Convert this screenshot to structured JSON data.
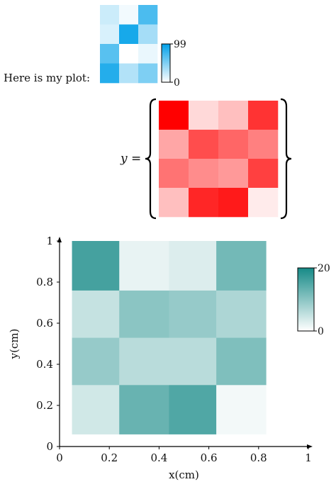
{
  "texts": {
    "intro": "Here is my plot:",
    "equation_lhs": "y ="
  },
  "chart_data": [
    {
      "type": "heatmap",
      "id": "small-blue",
      "rows": 4,
      "cols": 3,
      "values": [
        [
          20,
          5,
          70
        ],
        [
          15,
          90,
          35
        ],
        [
          65,
          0,
          8
        ],
        [
          85,
          30,
          50
        ]
      ],
      "colorbar": {
        "min": 0,
        "max": 99,
        "ticks": [
          "0",
          "99"
        ]
      },
      "colors": {
        "low": "#ffffff",
        "high": "#00a0e8"
      }
    },
    {
      "type": "heatmap",
      "id": "red-matrix",
      "rows": 4,
      "cols": 4,
      "values": [
        [
          100,
          15,
          25,
          80
        ],
        [
          35,
          70,
          60,
          50
        ],
        [
          55,
          45,
          40,
          75
        ],
        [
          25,
          85,
          90,
          8
        ]
      ],
      "colors": {
        "low": "#ffffff",
        "high": "#ff0000"
      }
    },
    {
      "type": "heatmap",
      "id": "teal-plot",
      "xlabel": "x(cm)",
      "ylabel": "y(cm)",
      "xlim": [
        0,
        1
      ],
      "ylim": [
        0,
        1
      ],
      "xticks": [
        0,
        0.2,
        0.4,
        0.6,
        0.8,
        1
      ],
      "yticks": [
        0,
        0.2,
        0.4,
        0.6,
        0.8,
        1
      ],
      "x_edges": [
        0.05,
        0.24,
        0.44,
        0.63,
        0.83
      ],
      "y_edges": [
        0.06,
        0.3,
        0.53,
        0.76,
        1.0
      ],
      "values": [
        [
          4,
          13,
          15,
          1
        ],
        [
          9,
          6,
          6,
          11
        ],
        [
          5,
          10,
          9,
          7
        ],
        [
          16,
          2,
          3,
          12
        ]
      ],
      "colorbar": {
        "min": 0,
        "max": 20,
        "ticks": [
          "0",
          "20"
        ]
      },
      "colors": {
        "low": "#ffffff",
        "high": "#168a87"
      }
    }
  ]
}
